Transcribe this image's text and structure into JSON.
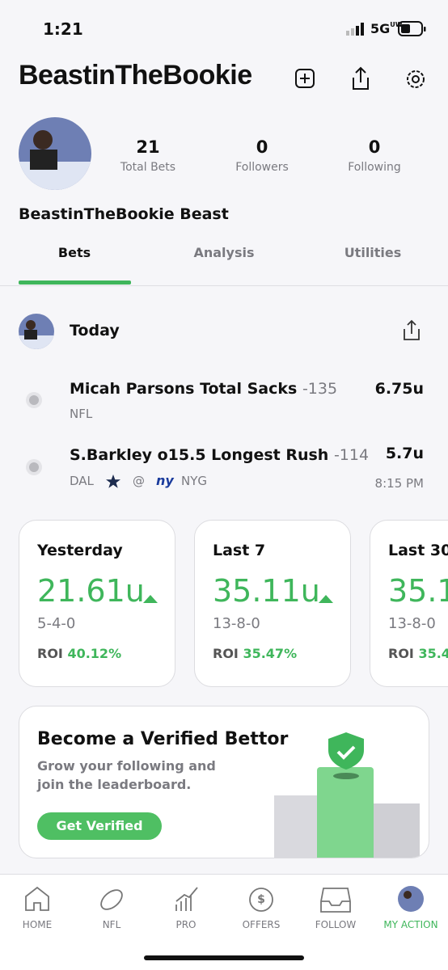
{
  "status_bar": {
    "time": "1:21",
    "network": "5G",
    "network_sub": "UW"
  },
  "header": {
    "username": "BeastinTheBookie"
  },
  "profile": {
    "stats": [
      {
        "value": "21",
        "label": "Total Bets"
      },
      {
        "value": "0",
        "label": "Followers"
      },
      {
        "value": "0",
        "label": "Following"
      }
    ],
    "display_name": "BeastinTheBookie Beast"
  },
  "tabs": [
    "Bets",
    "Analysis",
    "Utilities"
  ],
  "today": {
    "title": "Today",
    "bets": [
      {
        "title": "Micah Parsons Total Sacks",
        "odds": "-135",
        "units": "6.75u",
        "league": "NFL"
      },
      {
        "title": "S.Barkley o15.5 Longest Rush",
        "odds": "-114",
        "units": "5.7u",
        "away": "DAL",
        "at": "@",
        "home": "NYG",
        "time": "8:15 PM"
      }
    ]
  },
  "summary_cards": [
    {
      "period": "Yesterday",
      "units": "21.61u",
      "record": "5-4-0",
      "roi_label": "ROI",
      "roi": "40.12%"
    },
    {
      "period": "Last 7",
      "units": "35.11u",
      "record": "13-8-0",
      "roi_label": "ROI",
      "roi": "35.47%"
    },
    {
      "period": "Last 30",
      "units": "35.1",
      "record": "13-8-0",
      "roi_label": "ROI",
      "roi": "35.4"
    }
  ],
  "promo": {
    "title": "Become a Verified Bettor",
    "text_lines": [
      "Grow your following and",
      "join the leaderboard."
    ],
    "button": "Get Verified"
  },
  "nav": [
    "HOME",
    "NFL",
    "PRO",
    "OFFERS",
    "FOLLOW",
    "MY ACTION"
  ]
}
